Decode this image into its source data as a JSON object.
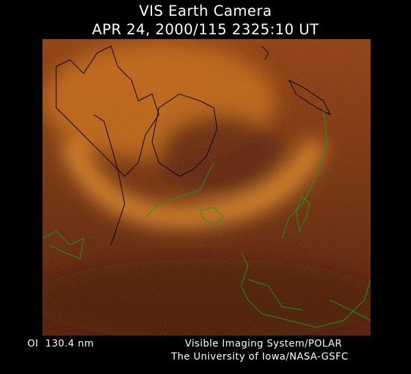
{
  "header": {
    "title": "VIS Earth Camera",
    "timestamp": "APR 24, 2000/115 2325:10 UT"
  },
  "footer": {
    "filter": "OI  130.4 nm",
    "instrument": "Visible Imaging System/POLAR",
    "institution": "The University of Iowa/NASA-GSFC"
  },
  "colors": {
    "background": "#000000",
    "image_dark": "#4a1408",
    "aurora_bright": "#f0a030",
    "coastline_day": "#000000",
    "coastline_night": "#1a9a1a"
  }
}
